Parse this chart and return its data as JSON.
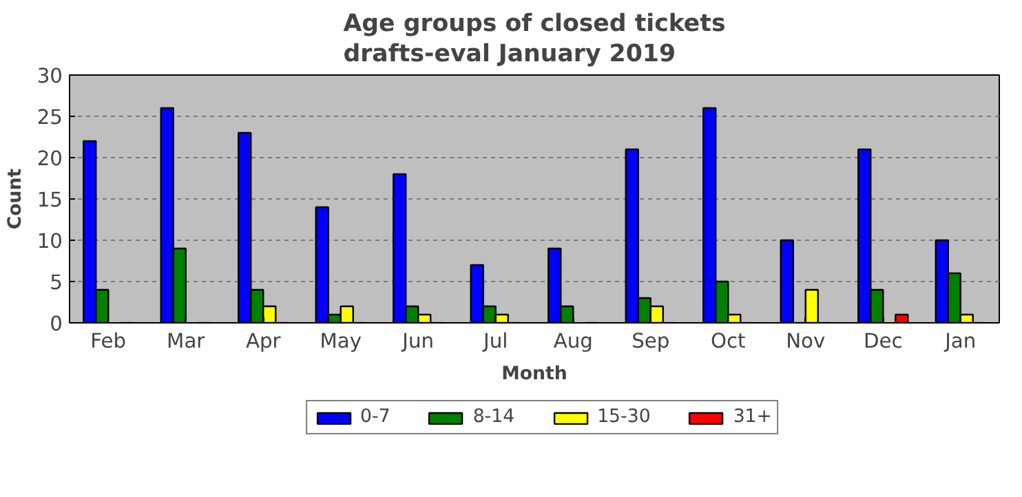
{
  "chart_data": {
    "type": "bar",
    "title": "Age groups of closed tickets\ndrafts-eval January 2019",
    "xlabel": "Month",
    "ylabel": "Count",
    "categories": [
      "Feb",
      "Mar",
      "Apr",
      "May",
      "Jun",
      "Jul",
      "Aug",
      "Sep",
      "Oct",
      "Nov",
      "Dec",
      "Jan"
    ],
    "series": [
      {
        "name": "0-7",
        "color": "#0000ff",
        "values": [
          22,
          26,
          23,
          14,
          18,
          7,
          9,
          21,
          26,
          10,
          21,
          10
        ]
      },
      {
        "name": "8-14",
        "color": "#008000",
        "values": [
          4,
          9,
          4,
          1,
          2,
          2,
          2,
          3,
          5,
          0,
          4,
          6
        ]
      },
      {
        "name": "15-30",
        "color": "#ffff00",
        "values": [
          0,
          0,
          2,
          2,
          1,
          1,
          0,
          2,
          1,
          4,
          0,
          1
        ]
      },
      {
        "name": "31+",
        "color": "#ff0000",
        "values": [
          0,
          0,
          0,
          0,
          0,
          0,
          0,
          0,
          0,
          0,
          1,
          0
        ]
      }
    ],
    "ylim": [
      0,
      30
    ],
    "yticks": [
      0,
      5,
      10,
      15,
      20,
      25,
      30
    ],
    "grid": "y",
    "legend": "bottom"
  }
}
